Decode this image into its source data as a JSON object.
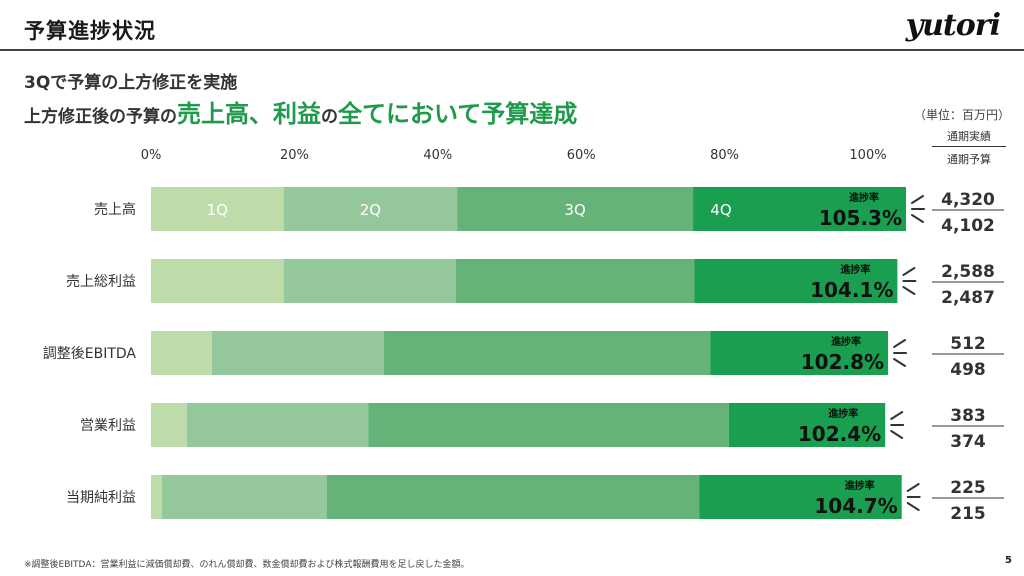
{
  "header": {
    "title": "予算進捗状況",
    "logo": "yutori"
  },
  "subtitle": {
    "line1": "3Qで予算の上方修正を実施",
    "line2_prefix": "上方修正後の予算の",
    "line2_hl1": "売上高、利益",
    "line2_mid": "の",
    "line2_hl2": "全てにおいて予算達成"
  },
  "legend": {
    "unit": "（単位：百万円）",
    "actual_header": "通期実績",
    "budget_header": "通期予算"
  },
  "footnote": "※調整後EBITDA：営業利益に減価償却費、のれん償却費、数金償却費および株式報酬費用を足し戻した金額。",
  "page_number": "5",
  "chart_data": {
    "type": "bar",
    "orientation": "horizontal",
    "stacked": true,
    "xlim": [
      0,
      105.3
    ],
    "ticks": [
      "0%",
      "20%",
      "40%",
      "60%",
      "80%",
      "100%"
    ],
    "tick_values": [
      0,
      20,
      40,
      60,
      80,
      100
    ],
    "rate_caption": "進捗率",
    "colors": [
      "#bddcaa",
      "#94c79b",
      "#66b379",
      "#1a9e4f"
    ],
    "series_names": [
      "1Q",
      "2Q",
      "3Q",
      "4Q"
    ],
    "categories": [
      {
        "name": "売上高",
        "segments": [
          18.5,
          24.2,
          32.9,
          29.7
        ],
        "rate": "105.3%",
        "actual": "4,320",
        "budget": "4,102",
        "show_q_labels": true
      },
      {
        "name": "売上総利益",
        "segments": [
          18.5,
          24.0,
          33.3,
          28.3
        ],
        "rate": "104.1%",
        "actual": "2,588",
        "budget": "2,487",
        "show_q_labels": false
      },
      {
        "name": "調整後EBITDA",
        "segments": [
          8.5,
          24.0,
          45.5,
          24.8
        ],
        "rate": "102.8%",
        "actual": "512",
        "budget": "498",
        "show_q_labels": false
      },
      {
        "name": "営業利益",
        "segments": [
          5.0,
          25.3,
          50.3,
          21.8
        ],
        "rate": "102.4%",
        "actual": "383",
        "budget": "374",
        "show_q_labels": false
      },
      {
        "name": "当期純利益",
        "segments": [
          1.5,
          23.0,
          52.0,
          28.2
        ],
        "rate": "104.7%",
        "actual": "225",
        "budget": "215",
        "show_q_labels": false
      }
    ]
  }
}
